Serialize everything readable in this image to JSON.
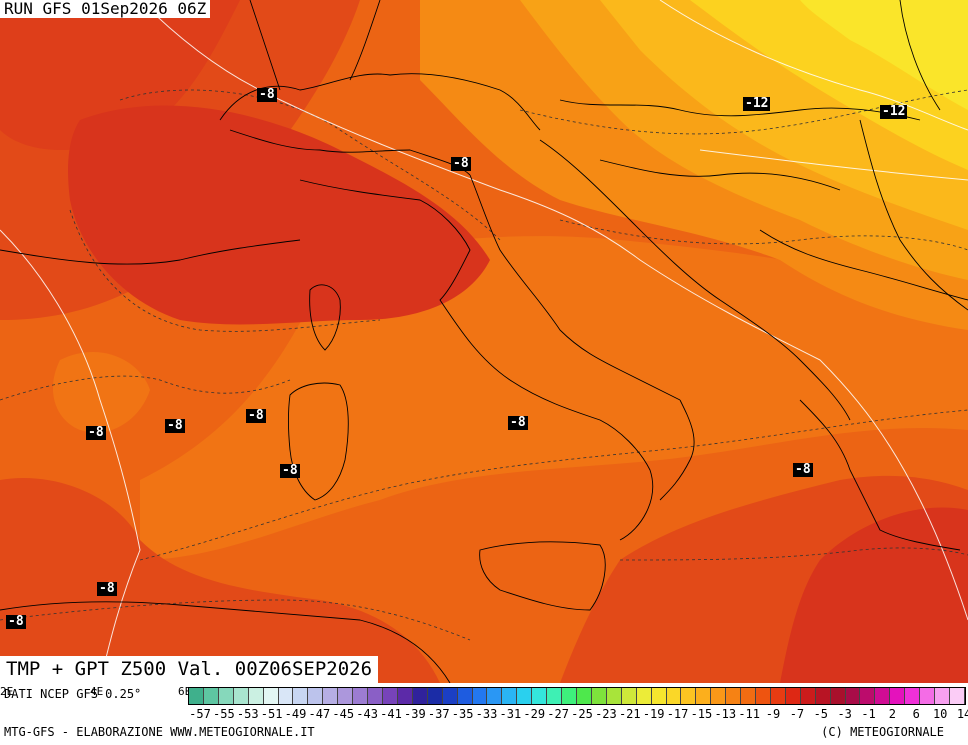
{
  "run_label": "RUN GFS 01Sep2026 06Z",
  "caption": "TMP + GPT Z500 Val. 00Z06SEP2026",
  "contour_labels": [
    "-8",
    "-12",
    "-12",
    "-8",
    "-8",
    "-8",
    "-8",
    "-8",
    "-8",
    "-8",
    "-8",
    "-8",
    "-8",
    "-8"
  ],
  "legend": {
    "source": "DATI NCEP GFS 0.25°",
    "edge_left": "2E",
    "edge_mid": "4E",
    "edge_right": "6E",
    "ticks": [
      "-57",
      "-55",
      "-53",
      "-51",
      "-49",
      "-47",
      "-45",
      "-43",
      "-41",
      "-39",
      "-37",
      "-35",
      "-33",
      "-31",
      "-29",
      "-27",
      "-25",
      "-23",
      "-21",
      "-19",
      "-17",
      "-15",
      "-13",
      "-11",
      "-9",
      "-7",
      "-5",
      "-3",
      "-1",
      "2",
      "6",
      "10",
      "14"
    ],
    "colors": [
      "#3fb08c",
      "#5ec6a2",
      "#86d8bb",
      "#a9e5cf",
      "#cbf0e2",
      "#e3f6f3",
      "#d9e6f7",
      "#c8d6f2",
      "#bcc3ec",
      "#b6aee4",
      "#ac97dc",
      "#9c7cd2",
      "#8a5fc6",
      "#7743ba",
      "#5c2aa8",
      "#30229c",
      "#1b2ca6",
      "#1b3fc4",
      "#1e5ce0",
      "#2378f0",
      "#2a97f4",
      "#2ab5f4",
      "#2ad0ee",
      "#34e6dc",
      "#3ef0b4",
      "#3ef07c",
      "#4ee84c",
      "#7ee23c",
      "#a8e43a",
      "#cfe83a",
      "#ecec38",
      "#f6e62e",
      "#fad728",
      "#fcc422",
      "#fcaf1c",
      "#fa9818",
      "#f68214",
      "#f26c12",
      "#ee5410",
      "#e83c12",
      "#de2814",
      "#cc1c1c",
      "#b81424",
      "#a8102c",
      "#a80c48",
      "#bc0c6c",
      "#d00c94",
      "#e412bc",
      "#f030d8",
      "#f46ce6",
      "#f8a0f0",
      "#fbccf6"
    ]
  },
  "footer": {
    "left": "MTG-GFS - ELABORAZIONE WWW.METEOGIORNALE.IT",
    "right": "(C) METEOGIORNALE"
  },
  "colors": {
    "deep_red": "#d8341c",
    "red": "#e24a18",
    "orange_red": "#ec6414",
    "orange": "#f58014",
    "light_orange": "#f89a14",
    "yellow_orange": "#fbb21a",
    "yellow": "#fcd21f",
    "bright_yellow": "#fae52a"
  }
}
